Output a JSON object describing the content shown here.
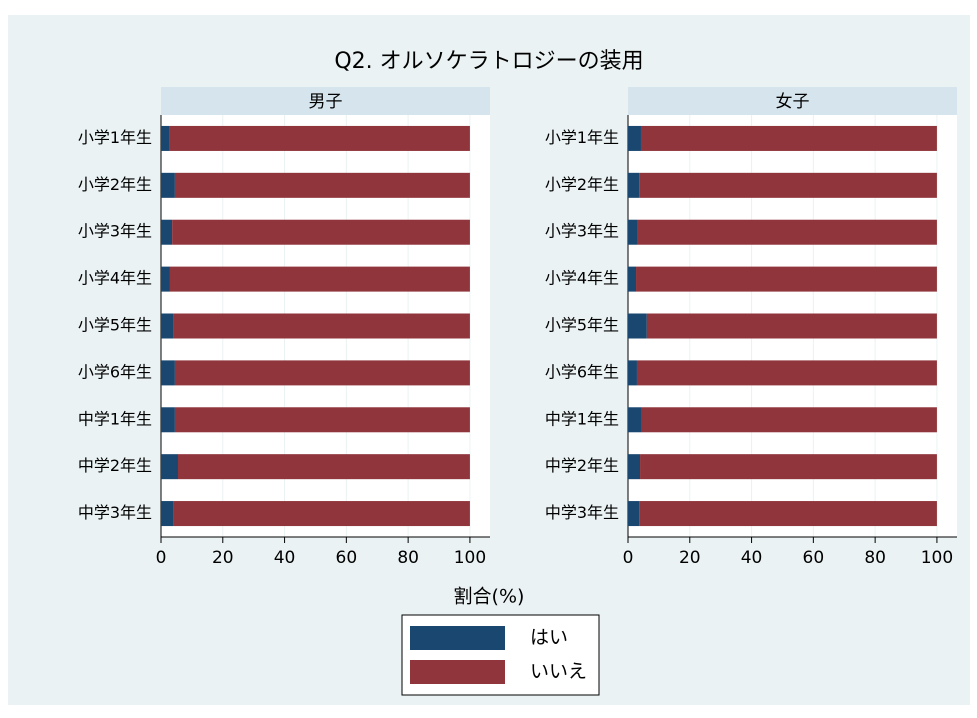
{
  "chart_data": {
    "type": "bar",
    "orientation": "horizontal",
    "stacked": true,
    "title": "Q2. オルソケラトロジーの装用",
    "xlabel": "割合(%)",
    "categories": [
      "小学1年生",
      "小学2年生",
      "小学3年生",
      "小学4年生",
      "小学5年生",
      "小学6年生",
      "中学1年生",
      "中学2年生",
      "中学3年生"
    ],
    "xlim": [
      0,
      106.5
    ],
    "xticks": [
      0,
      20,
      40,
      60,
      80,
      100
    ],
    "grid": true,
    "panels": [
      {
        "name": "男子",
        "series": [
          {
            "name": "はい",
            "color": "#1a476f",
            "values": [
              2.6,
              4.5,
              3.6,
              2.9,
              3.9,
              4.5,
              4.5,
              5.5,
              3.9
            ]
          },
          {
            "name": "いいえ",
            "color": "#90353b",
            "values": [
              97.4,
              95.5,
              96.4,
              97.1,
              96.1,
              95.5,
              95.5,
              94.5,
              96.1
            ]
          }
        ]
      },
      {
        "name": "女子",
        "series": [
          {
            "name": "はい",
            "color": "#1a476f",
            "values": [
              4.2,
              3.6,
              3.2,
              2.6,
              6.1,
              2.9,
              4.5,
              3.9,
              3.6
            ]
          },
          {
            "name": "いいえ",
            "color": "#90353b",
            "values": [
              95.8,
              96.4,
              96.8,
              97.4,
              93.9,
              97.1,
              95.5,
              96.1,
              96.4
            ]
          }
        ]
      }
    ]
  }
}
